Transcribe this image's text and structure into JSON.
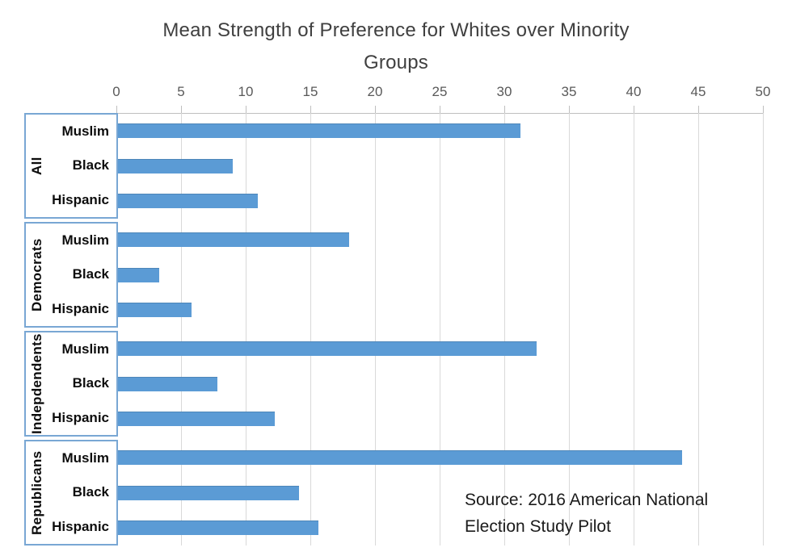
{
  "title_lines": [
    "Mean Strength of Preference for Whites over Minority",
    "Groups"
  ],
  "source_lines": [
    "Source: 2016 American National",
    "Election Study Pilot"
  ],
  "colors": {
    "bar": "#5b9bd5",
    "bar_edge": "#4e86b8",
    "gridline": "#d9d9d9",
    "axis_line": "#bfbfbf",
    "box_border": "#79a7d4",
    "tick_label": "#595959",
    "title_text": "#3f3f3f",
    "label_text": "#0d0d0d"
  },
  "chart_data": {
    "type": "bar",
    "orientation": "horizontal",
    "title": "Mean Strength of Preference for Whites over Minority Groups",
    "xlabel": "",
    "ylabel": "",
    "xlim": [
      0,
      50
    ],
    "x_ticks": [
      0,
      5,
      10,
      15,
      20,
      25,
      30,
      35,
      40,
      45,
      50
    ],
    "grid": true,
    "legend": false,
    "categories_per_group": [
      "Muslim",
      "Black",
      "Hispanic"
    ],
    "groups": [
      {
        "label": "All",
        "series": [
          {
            "name": "Muslim",
            "value": 31.1
          },
          {
            "name": "Black",
            "value": 8.9
          },
          {
            "name": "Hispanic",
            "value": 10.8
          }
        ]
      },
      {
        "label": "Democrats",
        "series": [
          {
            "name": "Muslim",
            "value": 17.9
          },
          {
            "name": "Black",
            "value": 3.2
          },
          {
            "name": "Hispanic",
            "value": 5.7
          }
        ]
      },
      {
        "label": "Indepdendents",
        "series": [
          {
            "name": "Muslim",
            "value": 32.4
          },
          {
            "name": "Black",
            "value": 7.7
          },
          {
            "name": "Hispanic",
            "value": 12.1
          }
        ]
      },
      {
        "label": "Republicans",
        "series": [
          {
            "name": "Muslim",
            "value": 43.6
          },
          {
            "name": "Black",
            "value": 14.0
          },
          {
            "name": "Hispanic",
            "value": 15.5
          }
        ]
      }
    ],
    "source": "Source: 2016 American National Election Study Pilot"
  }
}
